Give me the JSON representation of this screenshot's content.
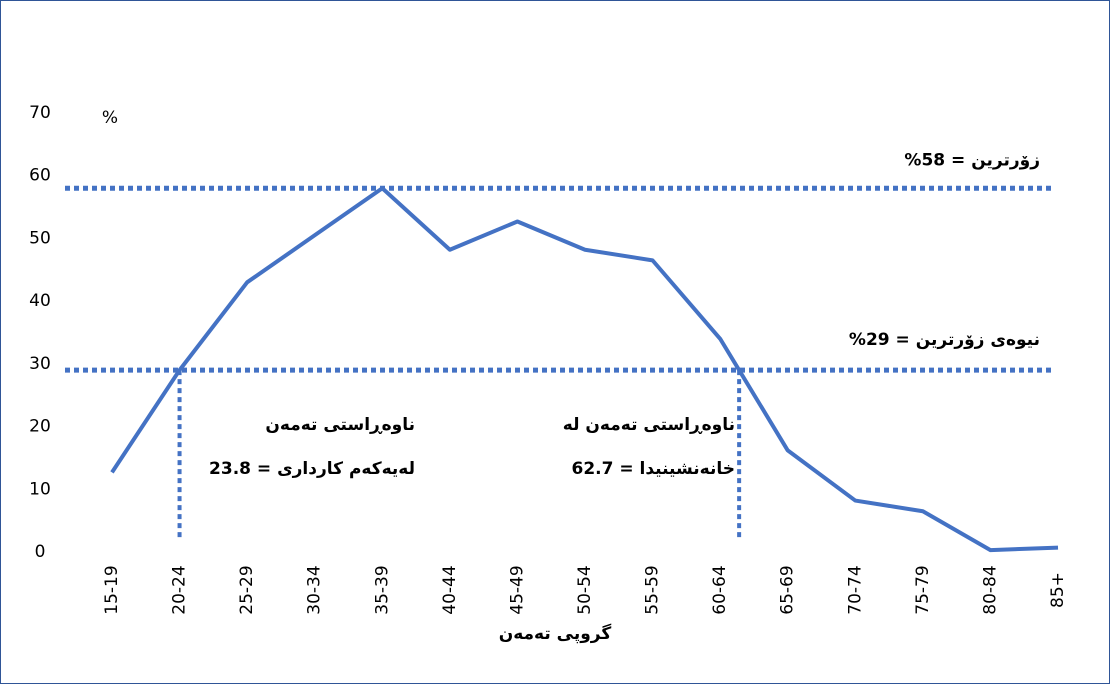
{
  "chart_data": {
    "type": "line",
    "y_unit": "%",
    "x_label": "گروپی تەمەن",
    "categories": [
      "15-19",
      "20-24",
      "25-29",
      "30-34",
      "35-39",
      "40-44",
      "45-49",
      "50-54",
      "55-59",
      "60-64",
      "65-69",
      "70-74",
      "75-79",
      "80-84",
      "85+"
    ],
    "values": [
      12.7,
      29,
      43,
      50.5,
      58,
      48.2,
      52.7,
      48.2,
      46.5,
      34,
      16.2,
      8.2,
      6.5,
      0.3,
      0.7
    ],
    "color": "#4472c4",
    "ylim": [
      0,
      70
    ],
    "yticks": [
      0,
      10,
      20,
      30,
      40,
      50,
      60,
      70
    ],
    "grid": false,
    "reference_lines": [
      {
        "value": 58,
        "label": "زۆرترین = 58%"
      },
      {
        "value": 29,
        "label": "نیوەی زۆرترین = 29%"
      }
    ],
    "annotations": [
      [
        "ناوەڕاستی تەمەن",
        "لەیەکەم کارداری = 23.8"
      ],
      [
        "ناوەڕاستی تەمەن لە",
        "خانەنشینیدا = 62.7"
      ]
    ]
  }
}
